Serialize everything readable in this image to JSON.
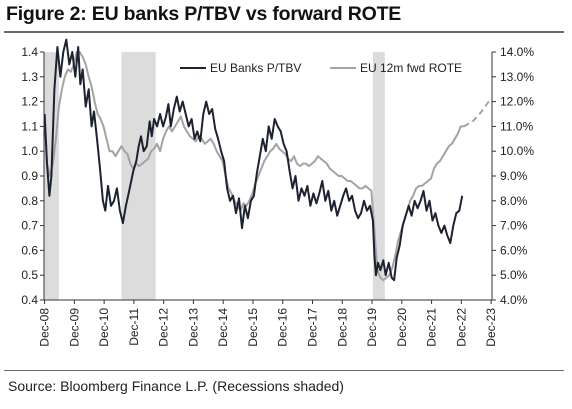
{
  "title": "Figure 2: EU banks P/TBV vs forward ROTE",
  "source": "Source: Bloomberg Finance L.P. (Recessions shaded)",
  "colors": {
    "ptbv": "#1c2230",
    "rote": "#a3a3a3",
    "recession": "#dcdcdc",
    "axis": "#333333"
  },
  "chart_data": {
    "type": "line",
    "x_ticks": [
      "Dec-08",
      "Dec-09",
      "Dec-10",
      "Dec-11",
      "Dec-12",
      "Dec-13",
      "Dec-14",
      "Dec-15",
      "Dec-16",
      "Dec-17",
      "Dec-18",
      "Dec-19",
      "Dec-20",
      "Dec-21",
      "Dec-22",
      "Dec-23"
    ],
    "x_range": [
      2008.9,
      2023.95
    ],
    "y_left": {
      "min": 0.4,
      "max": 1.4,
      "step": 0.1,
      "tick_labels": [
        "0.4",
        "0.5",
        "0.6",
        "0.7",
        "0.8",
        "0.9",
        "1.0",
        "1.1",
        "1.2",
        "1.3",
        "1.4"
      ]
    },
    "y_right": {
      "min": 4.0,
      "max": 14.0,
      "step": 1.0,
      "unit": "%",
      "tick_labels": [
        "4.0%",
        "5.0%",
        "6.0%",
        "7.0%",
        "8.0%",
        "9.0%",
        "10.0%",
        "11.0%",
        "12.0%",
        "13.0%",
        "14.0%"
      ]
    },
    "legend": {
      "position": "top-right"
    },
    "recessions": [
      [
        2008.9,
        2009.4
      ],
      [
        2011.5,
        2012.65
      ],
      [
        2019.95,
        2020.35
      ]
    ],
    "series": [
      {
        "name": "EU Banks P/TBV",
        "axis": "left",
        "points": [
          [
            2008.92,
            1.15
          ],
          [
            2009.0,
            0.95
          ],
          [
            2009.08,
            0.82
          ],
          [
            2009.15,
            0.9
          ],
          [
            2009.25,
            1.25
          ],
          [
            2009.35,
            1.42
          ],
          [
            2009.45,
            1.3
          ],
          [
            2009.55,
            1.4
          ],
          [
            2009.65,
            1.45
          ],
          [
            2009.75,
            1.35
          ],
          [
            2009.85,
            1.4
          ],
          [
            2009.95,
            1.3
          ],
          [
            2010.05,
            1.42
          ],
          [
            2010.12,
            1.27
          ],
          [
            2010.2,
            1.33
          ],
          [
            2010.3,
            1.18
          ],
          [
            2010.4,
            1.25
          ],
          [
            2010.5,
            1.1
          ],
          [
            2010.58,
            1.16
          ],
          [
            2010.68,
            1.05
          ],
          [
            2010.78,
            0.93
          ],
          [
            2010.88,
            0.8
          ],
          [
            2010.96,
            0.76
          ],
          [
            2011.05,
            0.86
          ],
          [
            2011.15,
            0.78
          ],
          [
            2011.25,
            0.8
          ],
          [
            2011.35,
            0.85
          ],
          [
            2011.45,
            0.76
          ],
          [
            2011.55,
            0.71
          ],
          [
            2011.65,
            0.78
          ],
          [
            2011.78,
            0.85
          ],
          [
            2011.9,
            0.92
          ],
          [
            2012.0,
            0.96
          ],
          [
            2012.08,
            1.02
          ],
          [
            2012.16,
            1.06
          ],
          [
            2012.25,
            1.0
          ],
          [
            2012.35,
            1.02
          ],
          [
            2012.45,
            1.12
          ],
          [
            2012.52,
            1.06
          ],
          [
            2012.6,
            1.13
          ],
          [
            2012.7,
            1.1
          ],
          [
            2012.8,
            1.15
          ],
          [
            2012.9,
            1.1
          ],
          [
            2013.0,
            1.14
          ],
          [
            2013.08,
            1.19
          ],
          [
            2013.16,
            1.1
          ],
          [
            2013.26,
            1.17
          ],
          [
            2013.36,
            1.22
          ],
          [
            2013.46,
            1.16
          ],
          [
            2013.56,
            1.2
          ],
          [
            2013.66,
            1.15
          ],
          [
            2013.76,
            1.1
          ],
          [
            2013.86,
            1.13
          ],
          [
            2013.96,
            1.05
          ],
          [
            2014.05,
            1.08
          ],
          [
            2014.15,
            1.04
          ],
          [
            2014.25,
            1.15
          ],
          [
            2014.35,
            1.2
          ],
          [
            2014.45,
            1.15
          ],
          [
            2014.55,
            1.17
          ],
          [
            2014.65,
            1.09
          ],
          [
            2014.75,
            1.05
          ],
          [
            2014.85,
            1.0
          ],
          [
            2014.95,
            0.96
          ],
          [
            2015.05,
            0.85
          ],
          [
            2015.15,
            0.8
          ],
          [
            2015.25,
            0.82
          ],
          [
            2015.35,
            0.75
          ],
          [
            2015.45,
            0.81
          ],
          [
            2015.55,
            0.69
          ],
          [
            2015.65,
            0.78
          ],
          [
            2015.75,
            0.73
          ],
          [
            2015.85,
            0.8
          ],
          [
            2015.95,
            0.82
          ],
          [
            2016.05,
            0.91
          ],
          [
            2016.15,
            0.98
          ],
          [
            2016.25,
            1.05
          ],
          [
            2016.35,
            1.0
          ],
          [
            2016.45,
            1.1
          ],
          [
            2016.55,
            1.05
          ],
          [
            2016.65,
            1.13
          ],
          [
            2016.75,
            1.1
          ],
          [
            2016.85,
            1.08
          ],
          [
            2016.95,
            1.03
          ],
          [
            2017.05,
            1.0
          ],
          [
            2017.15,
            0.92
          ],
          [
            2017.25,
            0.85
          ],
          [
            2017.35,
            0.9
          ],
          [
            2017.45,
            0.8
          ],
          [
            2017.55,
            0.85
          ],
          [
            2017.65,
            0.82
          ],
          [
            2017.75,
            0.86
          ],
          [
            2017.85,
            0.78
          ],
          [
            2017.95,
            0.83
          ],
          [
            2018.05,
            0.79
          ],
          [
            2018.15,
            0.83
          ],
          [
            2018.25,
            0.88
          ],
          [
            2018.35,
            0.8
          ],
          [
            2018.45,
            0.84
          ],
          [
            2018.55,
            0.76
          ],
          [
            2018.65,
            0.8
          ],
          [
            2018.75,
            0.74
          ],
          [
            2018.85,
            0.78
          ],
          [
            2018.95,
            0.82
          ],
          [
            2019.05,
            0.85
          ],
          [
            2019.15,
            0.8
          ],
          [
            2019.25,
            0.82
          ],
          [
            2019.35,
            0.76
          ],
          [
            2019.45,
            0.73
          ],
          [
            2019.55,
            0.75
          ],
          [
            2019.65,
            0.8
          ],
          [
            2019.75,
            0.76
          ],
          [
            2019.85,
            0.78
          ],
          [
            2019.95,
            0.72
          ],
          [
            2020.0,
            0.58
          ],
          [
            2020.05,
            0.5
          ],
          [
            2020.12,
            0.55
          ],
          [
            2020.2,
            0.52
          ],
          [
            2020.3,
            0.56
          ],
          [
            2020.38,
            0.5
          ],
          [
            2020.48,
            0.55
          ],
          [
            2020.58,
            0.49
          ],
          [
            2020.66,
            0.48
          ],
          [
            2020.75,
            0.57
          ],
          [
            2020.85,
            0.62
          ],
          [
            2020.95,
            0.7
          ],
          [
            2021.05,
            0.74
          ],
          [
            2021.15,
            0.78
          ],
          [
            2021.25,
            0.74
          ],
          [
            2021.35,
            0.8
          ],
          [
            2021.45,
            0.77
          ],
          [
            2021.55,
            0.8
          ],
          [
            2021.65,
            0.84
          ],
          [
            2021.75,
            0.76
          ],
          [
            2021.85,
            0.8
          ],
          [
            2021.95,
            0.72
          ],
          [
            2022.05,
            0.75
          ],
          [
            2022.15,
            0.7
          ],
          [
            2022.25,
            0.67
          ],
          [
            2022.35,
            0.7
          ],
          [
            2022.45,
            0.66
          ],
          [
            2022.55,
            0.63
          ],
          [
            2022.65,
            0.7
          ],
          [
            2022.75,
            0.75
          ],
          [
            2022.85,
            0.76
          ],
          [
            2022.95,
            0.82
          ]
        ]
      },
      {
        "name": "EU 12m fwd ROTE",
        "axis": "right",
        "points": [
          [
            2008.92,
            11.5
          ],
          [
            2009.0,
            9.5
          ],
          [
            2009.1,
            9.0
          ],
          [
            2009.2,
            9.5
          ],
          [
            2009.3,
            10.5
          ],
          [
            2009.4,
            11.8
          ],
          [
            2009.5,
            12.5
          ],
          [
            2009.6,
            13.0
          ],
          [
            2009.7,
            13.3
          ],
          [
            2009.8,
            13.2
          ],
          [
            2009.9,
            13.5
          ],
          [
            2010.0,
            14.0
          ],
          [
            2010.1,
            14.0
          ],
          [
            2010.2,
            13.8
          ],
          [
            2010.3,
            13.5
          ],
          [
            2010.4,
            13.0
          ],
          [
            2010.5,
            12.6
          ],
          [
            2010.6,
            12.0
          ],
          [
            2010.7,
            11.5
          ],
          [
            2010.8,
            11.3
          ],
          [
            2010.9,
            11.0
          ],
          [
            2011.0,
            10.5
          ],
          [
            2011.1,
            10.0
          ],
          [
            2011.2,
            10.0
          ],
          [
            2011.3,
            9.8
          ],
          [
            2011.4,
            10.0
          ],
          [
            2011.5,
            10.2
          ],
          [
            2011.6,
            10.0
          ],
          [
            2011.7,
            9.9
          ],
          [
            2011.8,
            9.5
          ],
          [
            2011.9,
            9.3
          ],
          [
            2012.0,
            9.5
          ],
          [
            2012.1,
            9.4
          ],
          [
            2012.2,
            9.5
          ],
          [
            2012.3,
            9.6
          ],
          [
            2012.4,
            9.7
          ],
          [
            2012.5,
            10.0
          ],
          [
            2012.6,
            10.1
          ],
          [
            2012.7,
            10.3
          ],
          [
            2012.8,
            10.0
          ],
          [
            2012.9,
            10.5
          ],
          [
            2013.0,
            10.8
          ],
          [
            2013.1,
            11.0
          ],
          [
            2013.2,
            10.8
          ],
          [
            2013.3,
            11.0
          ],
          [
            2013.4,
            11.2
          ],
          [
            2013.5,
            11.4
          ],
          [
            2013.6,
            11.0
          ],
          [
            2013.7,
            10.8
          ],
          [
            2013.8,
            10.6
          ],
          [
            2013.9,
            10.5
          ],
          [
            2014.0,
            10.4
          ],
          [
            2014.1,
            10.6
          ],
          [
            2014.2,
            10.5
          ],
          [
            2014.3,
            10.3
          ],
          [
            2014.4,
            10.4
          ],
          [
            2014.5,
            10.5
          ],
          [
            2014.6,
            10.3
          ],
          [
            2014.7,
            10.0
          ],
          [
            2014.8,
            9.8
          ],
          [
            2014.9,
            9.6
          ],
          [
            2015.0,
            9.0
          ],
          [
            2015.1,
            8.5
          ],
          [
            2015.2,
            8.3
          ],
          [
            2015.3,
            8.0
          ],
          [
            2015.4,
            7.8
          ],
          [
            2015.5,
            7.6
          ],
          [
            2015.6,
            7.9
          ],
          [
            2015.7,
            7.8
          ],
          [
            2015.8,
            8.0
          ],
          [
            2015.9,
            8.3
          ],
          [
            2016.0,
            8.7
          ],
          [
            2016.1,
            9.0
          ],
          [
            2016.2,
            9.3
          ],
          [
            2016.3,
            9.6
          ],
          [
            2016.4,
            9.8
          ],
          [
            2016.5,
            10.0
          ],
          [
            2016.6,
            10.1
          ],
          [
            2016.7,
            10.3
          ],
          [
            2016.8,
            10.1
          ],
          [
            2016.9,
            10.0
          ],
          [
            2017.0,
            9.9
          ],
          [
            2017.1,
            9.7
          ],
          [
            2017.2,
            9.6
          ],
          [
            2017.3,
            9.8
          ],
          [
            2017.4,
            9.5
          ],
          [
            2017.5,
            9.4
          ],
          [
            2017.6,
            9.5
          ],
          [
            2017.7,
            9.5
          ],
          [
            2017.8,
            9.4
          ],
          [
            2017.9,
            9.5
          ],
          [
            2018.0,
            9.6
          ],
          [
            2018.1,
            9.8
          ],
          [
            2018.2,
            9.7
          ],
          [
            2018.3,
            9.6
          ],
          [
            2018.4,
            9.5
          ],
          [
            2018.5,
            9.3
          ],
          [
            2018.6,
            9.2
          ],
          [
            2018.7,
            9.1
          ],
          [
            2018.8,
            9.0
          ],
          [
            2018.9,
            9.0
          ],
          [
            2019.0,
            8.9
          ],
          [
            2019.1,
            8.8
          ],
          [
            2019.2,
            8.8
          ],
          [
            2019.3,
            8.7
          ],
          [
            2019.4,
            8.6
          ],
          [
            2019.5,
            8.5
          ],
          [
            2019.6,
            8.5
          ],
          [
            2019.7,
            8.6
          ],
          [
            2019.8,
            8.5
          ],
          [
            2019.9,
            8.4
          ],
          [
            2020.0,
            6.8
          ],
          [
            2020.1,
            5.2
          ],
          [
            2020.2,
            4.9
          ],
          [
            2020.3,
            4.8
          ],
          [
            2020.4,
            4.9
          ],
          [
            2020.5,
            5.0
          ],
          [
            2020.6,
            5.3
          ],
          [
            2020.7,
            5.8
          ],
          [
            2020.8,
            6.4
          ],
          [
            2020.9,
            6.8
          ],
          [
            2021.0,
            7.2
          ],
          [
            2021.1,
            7.6
          ],
          [
            2021.2,
            8.0
          ],
          [
            2021.3,
            8.2
          ],
          [
            2021.4,
            8.5
          ],
          [
            2021.5,
            8.6
          ],
          [
            2021.6,
            8.6
          ],
          [
            2021.7,
            8.7
          ],
          [
            2021.8,
            8.8
          ],
          [
            2021.9,
            8.9
          ],
          [
            2022.0,
            9.3
          ],
          [
            2022.1,
            9.5
          ],
          [
            2022.2,
            9.6
          ],
          [
            2022.3,
            9.8
          ],
          [
            2022.4,
            10.0
          ],
          [
            2022.5,
            10.2
          ],
          [
            2022.6,
            10.3
          ],
          [
            2022.7,
            10.5
          ],
          [
            2022.8,
            10.7
          ],
          [
            2022.9,
            11.0
          ],
          [
            2023.0,
            11.0
          ]
        ],
        "forecast": [
          [
            2023.0,
            11.0
          ],
          [
            2023.3,
            11.2
          ],
          [
            2023.6,
            11.6
          ],
          [
            2023.9,
            12.1
          ]
        ]
      }
    ]
  }
}
